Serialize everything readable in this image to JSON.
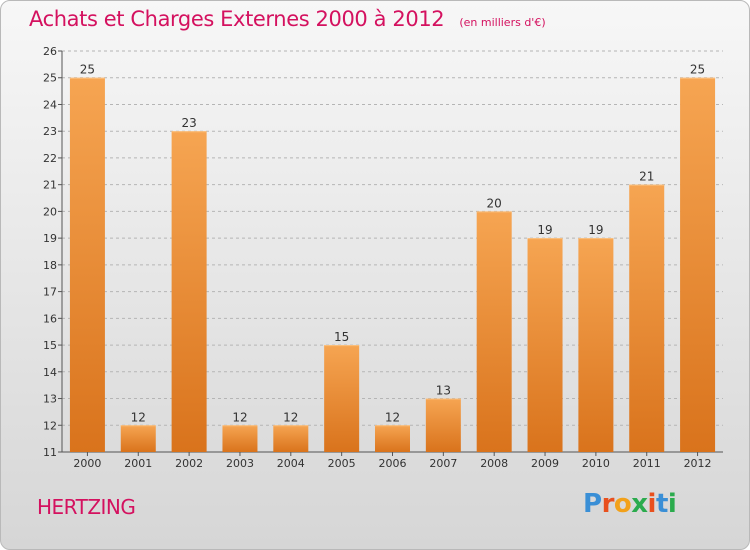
{
  "header": {
    "title": "Achats et Charges Externes 2000 à 2012",
    "subtitle": "(en milliers d'€)"
  },
  "footer": {
    "commune": "HERTZING",
    "logo_letters": [
      "P",
      "r",
      "o",
      "x",
      "i",
      "t",
      "i"
    ],
    "logo_colors": [
      "#3a8fd6",
      "#e8501e",
      "#f2a11a",
      "#2bab4d",
      "#e8501e",
      "#3a8fd6",
      "#2bab4d"
    ]
  },
  "colors": {
    "accent": "#d4115f",
    "bar_top": "#f6a552",
    "bar_bottom": "#d9731c"
  },
  "chart_data": {
    "type": "bar",
    "title": "Achats et Charges Externes 2000 à 2012",
    "subtitle": "(en milliers d'€)",
    "categories": [
      "2000",
      "2001",
      "2002",
      "2003",
      "2004",
      "2005",
      "2006",
      "2007",
      "2008",
      "2009",
      "2010",
      "2011",
      "2012"
    ],
    "values": [
      25,
      12,
      23,
      12,
      12,
      15,
      12,
      13,
      20,
      19,
      19,
      21,
      25
    ],
    "data_labels": [
      "25",
      "12",
      "23",
      "12",
      "12",
      "15",
      "12",
      "13",
      "20",
      "19",
      "19",
      "21",
      "25"
    ],
    "ylim": [
      11,
      26
    ],
    "yticks": [
      "11",
      "12",
      "13",
      "14",
      "15",
      "16",
      "17",
      "18",
      "19",
      "20",
      "21",
      "22",
      "23",
      "24",
      "25",
      "26"
    ],
    "grid": true,
    "xlabel": "",
    "ylabel": ""
  }
}
